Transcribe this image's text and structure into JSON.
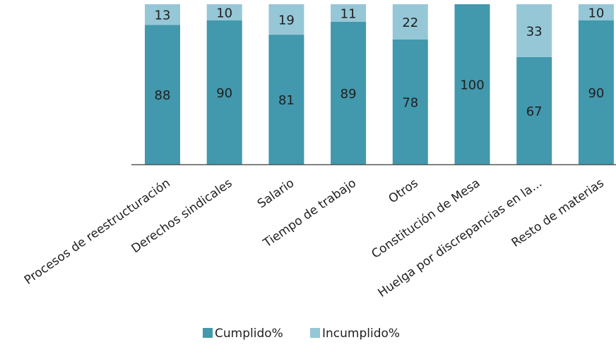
{
  "chart_data": {
    "type": "bar",
    "stacked": true,
    "categories": [
      "Procesos de reestructuración",
      "Derechos sindicales",
      "Salario",
      "Tiempo de trabajo",
      "Otros",
      "Constitución de Mesa",
      "Huelga por discrepancias en la...",
      "Resto de materias"
    ],
    "series": [
      {
        "name": "Cumplido%",
        "values": [
          88,
          90,
          81,
          89,
          78,
          100,
          67,
          90
        ],
        "labels": [
          "88",
          "90",
          "81",
          "89",
          "78",
          "100",
          "67",
          "90"
        ],
        "color": "#4298ad"
      },
      {
        "name": "Incumplido%",
        "values": [
          13,
          10,
          19,
          11,
          22,
          0,
          33,
          10
        ],
        "labels": [
          "13",
          "10",
          "19",
          "11",
          "22",
          "",
          "33",
          "10"
        ],
        "color": "#95c7d6"
      }
    ],
    "ylim": [
      0,
      100
    ],
    "grid": false,
    "legend_position": "bottom"
  }
}
